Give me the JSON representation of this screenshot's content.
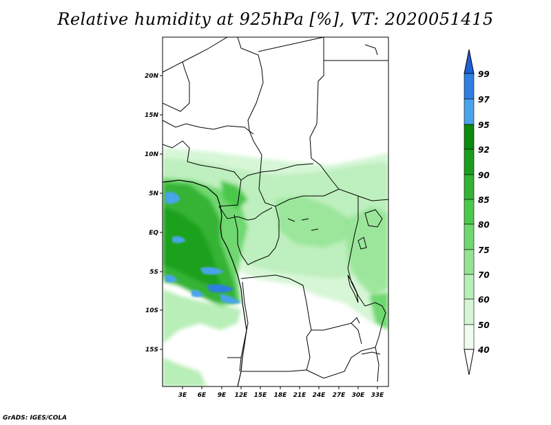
{
  "title": "Relative humidity at 925hPa [%], VT: 2020051415",
  "credit": "GrADS: IGES/COLA",
  "map": {
    "lon_labels": [
      "3E",
      "6E",
      "9E",
      "12E",
      "15E",
      "18E",
      "21E",
      "24E",
      "27E",
      "30E",
      "33E"
    ],
    "lat_labels": [
      "20N",
      "15N",
      "10N",
      "5N",
      "EQ",
      "5S",
      "10S",
      "15S"
    ]
  },
  "colorbar": {
    "levels": [
      "99",
      "97",
      "95",
      "92",
      "90",
      "85",
      "80",
      "75",
      "70",
      "60",
      "50",
      "40"
    ],
    "colors": [
      "#1e5fd6",
      "#2f7fe0",
      "#4aa4ea",
      "#0c8a0c",
      "#1c9e1c",
      "#34b334",
      "#4cc84c",
      "#6fd86f",
      "#95e495",
      "#b8eeb8",
      "#d6f6d6",
      "#effcef"
    ]
  },
  "chart_data": {
    "type": "heatmap",
    "title": "Relative humidity at 925hPa [%], VT: 2020051415",
    "variable": "Relative humidity at 925hPa",
    "units": "%",
    "valid_time": "2020051415",
    "x_ticks": [
      "3E",
      "6E",
      "9E",
      "12E",
      "15E",
      "18E",
      "21E",
      "24E",
      "27E",
      "30E",
      "33E"
    ],
    "y_ticks": [
      "20N",
      "15N",
      "10N",
      "5N",
      "EQ",
      "5S",
      "10S",
      "15S"
    ],
    "lon_range": [
      0,
      34.5
    ],
    "lat_range": [
      -20,
      24.5
    ],
    "contour_levels": [
      40,
      50,
      60,
      70,
      75,
      80,
      85,
      90,
      92,
      95,
      97,
      99
    ]
  }
}
